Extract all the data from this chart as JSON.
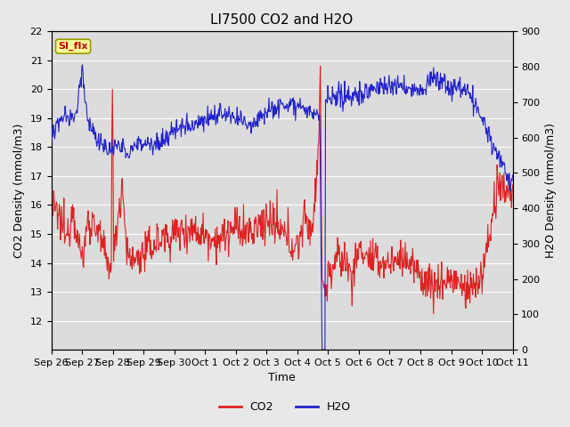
{
  "title": "LI7500 CO2 and H2O",
  "xlabel": "Time",
  "ylabel_left": "CO2 Density (mmol/m3)",
  "ylabel_right": "H2O Density (mmol/m3)",
  "ylim_left": [
    11.0,
    22.0
  ],
  "ylim_right": [
    0,
    900
  ],
  "yticks_left": [
    12.0,
    13.0,
    14.0,
    15.0,
    16.0,
    17.0,
    18.0,
    19.0,
    20.0,
    21.0,
    22.0
  ],
  "yticks_right": [
    0,
    100,
    200,
    300,
    400,
    500,
    600,
    700,
    800,
    900
  ],
  "xtick_labels": [
    "Sep 26",
    "Sep 27",
    "Sep 28",
    "Sep 29",
    "Sep 30",
    "Oct 1",
    "Oct 2",
    "Oct 3",
    "Oct 4",
    "Oct 5",
    "Oct 6",
    "Oct 7",
    "Oct 8",
    "Oct 9",
    "Oct 10",
    "Oct 11"
  ],
  "co2_color": "#dd2222",
  "h2o_color": "#2222cc",
  "fig_bg": "#e8e8e8",
  "plot_bg": "#dcdcdc",
  "annotation_text": "SI_flx",
  "annotation_fg": "#cc0000",
  "annotation_bg": "#ffff99",
  "annotation_border": "#999900",
  "legend_co2": "CO2",
  "legend_h2o": "H2O",
  "title_fontsize": 11,
  "axis_fontsize": 9,
  "tick_fontsize": 8,
  "annot_fontsize": 8
}
